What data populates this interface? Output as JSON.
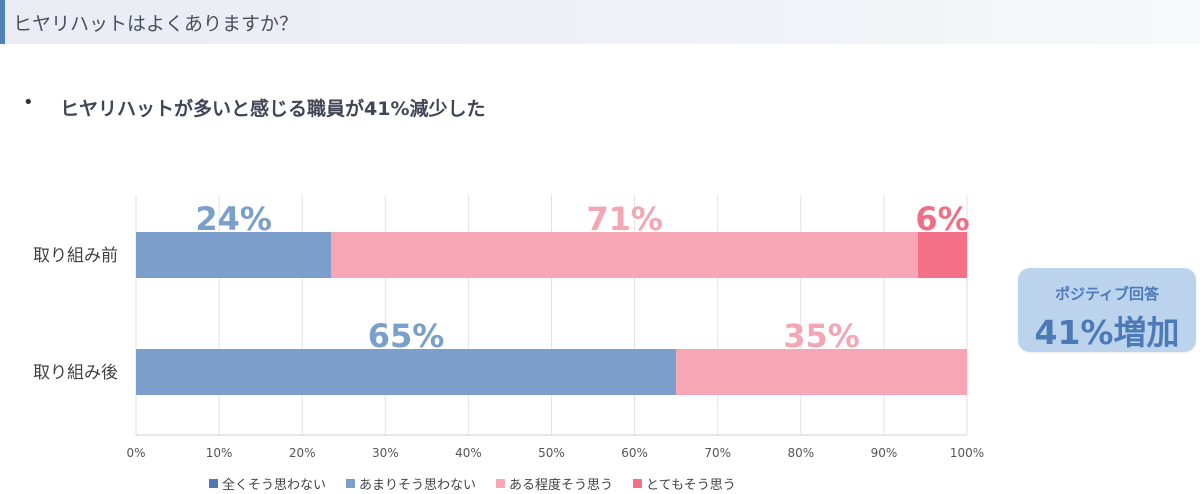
{
  "header": {
    "title": "ヒヤリハットはよくありますか？"
  },
  "bullet": {
    "symbol": "•",
    "text": "ヒヤリハットが多いと感じる職員が41%減少した"
  },
  "badge": {
    "line1": "ポジティブ回答",
    "line2": "41%増加"
  },
  "chart_data": {
    "type": "bar",
    "orientation": "horizontal",
    "stacked": true,
    "categories": [
      "取り組み前",
      "取り組み後"
    ],
    "series": [
      {
        "name": "全くそう思わない",
        "values": [
          0,
          0
        ],
        "labels": [
          "",
          ""
        ],
        "color": "#4e79b4",
        "label_color": "#7a9fc9"
      },
      {
        "name": "あまりそう思わない",
        "values": [
          23.5,
          65
        ],
        "labels": [
          "24%",
          "65%"
        ],
        "color": "#7b9fca",
        "label_color": "#7a9fc9"
      },
      {
        "name": "ある程度そう思う",
        "values": [
          70.6,
          35
        ],
        "labels": [
          "71%",
          "35%"
        ],
        "color": "#f7a6b5",
        "label_color": "#f3a6b4"
      },
      {
        "name": "とてもそう思う",
        "values": [
          5.9,
          0
        ],
        "labels": [
          "6%",
          ""
        ],
        "color": "#f47188",
        "label_color": "#ee6f86"
      }
    ],
    "xticks": [
      "0%",
      "10%",
      "20%",
      "30%",
      "40%",
      "50%",
      "60%",
      "70%",
      "80%",
      "90%",
      "100%"
    ],
    "xlim": [
      0,
      100
    ],
    "grid": true,
    "legend": "bottom"
  }
}
